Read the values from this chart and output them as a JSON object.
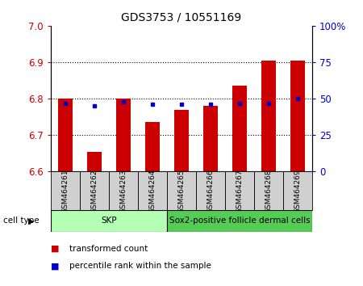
{
  "title": "GDS3753 / 10551169",
  "categories": [
    "GSM464261",
    "GSM464262",
    "GSM464263",
    "GSM464264",
    "GSM464265",
    "GSM464266",
    "GSM464267",
    "GSM464268",
    "GSM464269"
  ],
  "red_values": [
    6.8,
    6.655,
    6.8,
    6.735,
    6.77,
    6.78,
    6.835,
    6.905,
    6.905
  ],
  "blue_values": [
    47,
    45,
    48,
    46,
    46,
    46,
    47,
    47,
    50
  ],
  "ylim_left": [
    6.6,
    7.0
  ],
  "ylim_right": [
    0,
    100
  ],
  "yticks_left": [
    6.6,
    6.7,
    6.8,
    6.9,
    7.0
  ],
  "yticks_right": [
    0,
    25,
    50,
    75,
    100
  ],
  "ytick_labels_right": [
    "0",
    "25",
    "50",
    "75",
    "100%"
  ],
  "cell_type_groups": [
    {
      "label": "SKP",
      "start": 0,
      "end": 4,
      "color": "#b3ffb3"
    },
    {
      "label": "Sox2-positive follicle dermal cells",
      "start": 4,
      "end": 9,
      "color": "#55cc55"
    }
  ],
  "cell_type_label": "cell type",
  "bar_color": "#cc0000",
  "dot_color": "#0000cc",
  "bar_width": 0.5,
  "legend_items": [
    {
      "label": "transformed count",
      "color": "#cc0000"
    },
    {
      "label": "percentile rank within the sample",
      "color": "#0000cc"
    }
  ],
  "tick_label_color_left": "#cc0000",
  "tick_label_color_right": "#0000cc",
  "xtick_box_color": "#d0d0d0",
  "grid_dotted_vals": [
    6.7,
    6.8,
    6.9
  ]
}
